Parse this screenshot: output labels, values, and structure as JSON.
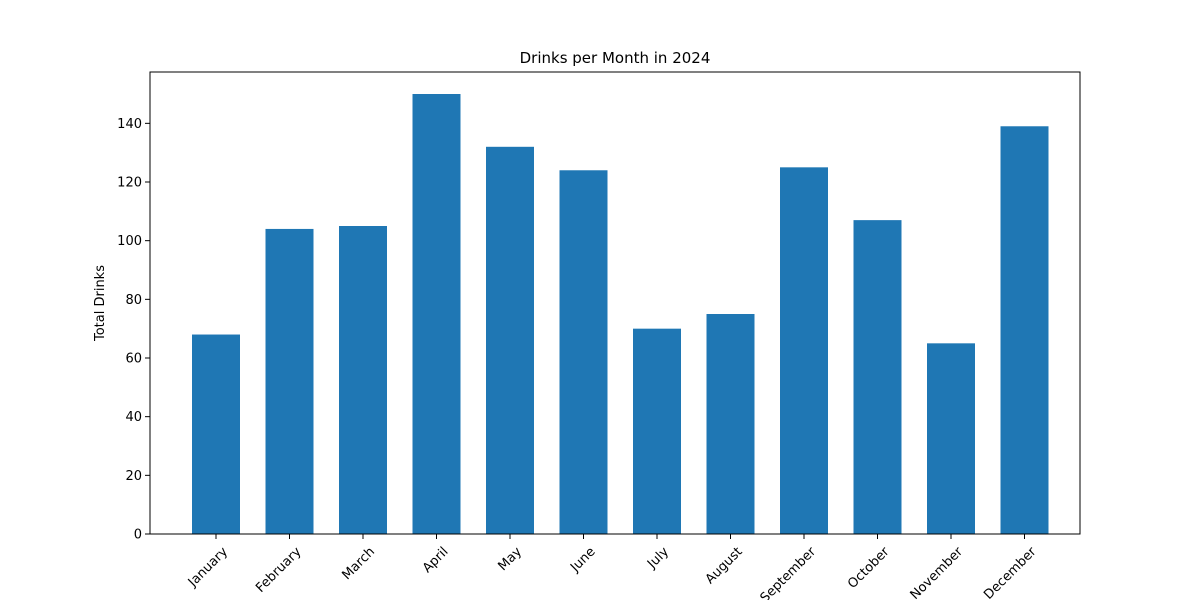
{
  "chart_data": {
    "type": "bar",
    "title": "Drinks per Month in 2024",
    "xlabel": "",
    "ylabel": "Total Drinks",
    "categories": [
      "January",
      "February",
      "March",
      "April",
      "May",
      "June",
      "July",
      "August",
      "September",
      "October",
      "November",
      "December"
    ],
    "values": [
      68,
      104,
      105,
      150,
      132,
      124,
      70,
      75,
      125,
      107,
      65,
      139
    ],
    "ylim": [
      0,
      157.5
    ],
    "yticks": [
      0,
      20,
      40,
      60,
      80,
      100,
      120,
      140
    ],
    "bar_color": "#1f77b4",
    "grid": false,
    "legend": "none"
  }
}
